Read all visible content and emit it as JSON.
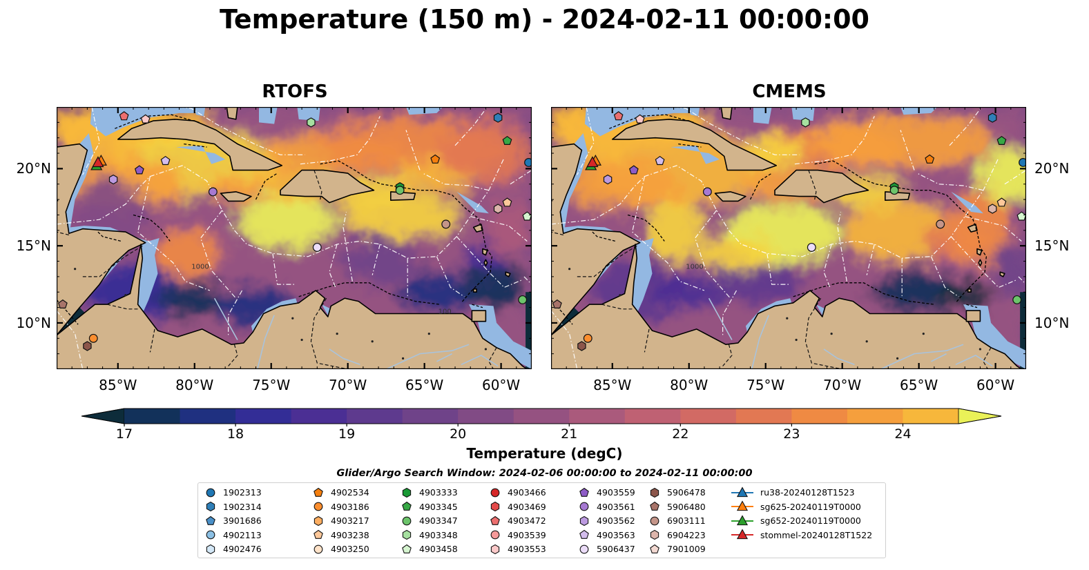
{
  "title": "Temperature (150 m) - 2024-02-11 00:00:00",
  "panels": [
    {
      "title": "RTOFS",
      "variant": 0
    },
    {
      "title": "CMEMS",
      "variant": 1
    }
  ],
  "map": {
    "lon_range": [
      -89,
      -58
    ],
    "lat_range": [
      7,
      24
    ],
    "lat_ticks": [
      {
        "value": 20,
        "label": "20°N"
      },
      {
        "value": 15,
        "label": "15°N"
      },
      {
        "value": 10,
        "label": "10°N"
      }
    ],
    "lon_ticks": [
      {
        "value": -85,
        "label": "85°W"
      },
      {
        "value": -80,
        "label": "80°W"
      },
      {
        "value": -75,
        "label": "75°W"
      },
      {
        "value": -70,
        "label": "70°W"
      },
      {
        "value": -65,
        "label": "65°W"
      },
      {
        "value": -60,
        "label": "60°W"
      }
    ],
    "contour_labels": [
      "1000",
      "100"
    ],
    "colors": {
      "land": "#d2b48c",
      "shelf": "#93b8e2",
      "coast": "#000000",
      "eez": "#ffffff"
    }
  },
  "colorbar": {
    "label": "Temperature (degC)",
    "range": [
      17,
      24.5
    ],
    "step": 0.5,
    "ticks": [
      {
        "value": 17,
        "label": "17"
      },
      {
        "value": 18,
        "label": "18"
      },
      {
        "value": 19,
        "label": "19"
      },
      {
        "value": 20,
        "label": "20"
      },
      {
        "value": 21,
        "label": "21"
      },
      {
        "value": 22,
        "label": "22"
      },
      {
        "value": 23,
        "label": "23"
      },
      {
        "value": 24,
        "label": "24"
      }
    ],
    "colors": [
      "#0d2c3a",
      "#12315a",
      "#1f3080",
      "#332d96",
      "#4b2f94",
      "#5e3a8e",
      "#6f4389",
      "#814b85",
      "#955281",
      "#aa5a7c",
      "#bf6173",
      "#d26a64",
      "#e27853",
      "#ef8a43",
      "#f59f3d",
      "#f7b73b",
      "#f5d23f",
      "#eaf158"
    ]
  },
  "legend": {
    "title": "Glider/Argo Search Window: 2024-02-06 00:00:00 to 2024-02-11 00:00:00",
    "columns": [
      [
        {
          "label": "1902313",
          "marker": "circle",
          "color": "#1f77b4"
        },
        {
          "label": "1902314",
          "marker": "hexagon",
          "color": "#2f7fb8"
        },
        {
          "label": "3901686",
          "marker": "pentagon",
          "color": "#4a90c8"
        },
        {
          "label": "4902113",
          "marker": "circle",
          "color": "#8cc0e4"
        },
        {
          "label": "4902476",
          "marker": "hexagon",
          "color": "#d4e8f7"
        }
      ],
      [
        {
          "label": "4902534",
          "marker": "pentagon",
          "color": "#f57f0e"
        },
        {
          "label": "4903186",
          "marker": "circle",
          "color": "#fb8e2f"
        },
        {
          "label": "4903217",
          "marker": "hexagon",
          "color": "#fdae61"
        },
        {
          "label": "4903238",
          "marker": "pentagon",
          "color": "#fdc89a"
        },
        {
          "label": "4903250",
          "marker": "circle",
          "color": "#ffe3c9"
        }
      ],
      [
        {
          "label": "4903333",
          "marker": "hexagon",
          "color": "#1a9a36"
        },
        {
          "label": "4903345",
          "marker": "pentagon",
          "color": "#37a845"
        },
        {
          "label": "4903347",
          "marker": "circle",
          "color": "#6cc46b"
        },
        {
          "label": "4903348",
          "marker": "hexagon",
          "color": "#a6e0a0"
        },
        {
          "label": "4903458",
          "marker": "pentagon",
          "color": "#d6f5d0"
        }
      ],
      [
        {
          "label": "4903466",
          "marker": "circle",
          "color": "#d62728"
        },
        {
          "label": "4903469",
          "marker": "hexagon",
          "color": "#e34a4a"
        },
        {
          "label": "4903472",
          "marker": "pentagon",
          "color": "#ec6f6f"
        },
        {
          "label": "4903539",
          "marker": "circle",
          "color": "#f59a9a"
        },
        {
          "label": "4903553",
          "marker": "hexagon",
          "color": "#fcc9c9"
        }
      ],
      [
        {
          "label": "4903559",
          "marker": "pentagon",
          "color": "#8e5cc7"
        },
        {
          "label": "4903561",
          "marker": "circle",
          "color": "#a679d2"
        },
        {
          "label": "4903562",
          "marker": "hexagon",
          "color": "#bc9ae0"
        },
        {
          "label": "4903563",
          "marker": "pentagon",
          "color": "#d3bdec"
        },
        {
          "label": "5906437",
          "marker": "circle",
          "color": "#ebdcf8"
        }
      ],
      [
        {
          "label": "5906478",
          "marker": "hexagon",
          "color": "#8c564b"
        },
        {
          "label": "5906480",
          "marker": "pentagon",
          "color": "#a8746a"
        },
        {
          "label": "6903111",
          "marker": "circle",
          "color": "#c49589"
        },
        {
          "label": "6904223",
          "marker": "hexagon",
          "color": "#dcb5ab"
        },
        {
          "label": "7901009",
          "marker": "pentagon",
          "color": "#f3d9d2"
        }
      ],
      [
        {
          "label": "ru38-20240128T1523",
          "marker": "triangle",
          "color": "#1f77b4"
        },
        {
          "label": "sg625-20240119T0000",
          "marker": "triangle",
          "color": "#ff7f0e"
        },
        {
          "label": "sg652-20240119T0000",
          "marker": "triangle",
          "color": "#2ca02c"
        },
        {
          "label": "stommel-20240128T1522",
          "marker": "triangle",
          "color": "#d62728"
        }
      ]
    ]
  },
  "observations": [
    {
      "lon": -58.2,
      "lat": 20.4,
      "marker": "circle",
      "color": "#1f77b4"
    },
    {
      "lon": -60.2,
      "lat": 23.3,
      "marker": "hexagon",
      "color": "#2f7fb8"
    },
    {
      "lon": -84.6,
      "lat": 23.4,
      "marker": "pentagon",
      "color": "#ec6f6f"
    },
    {
      "lon": -83.2,
      "lat": 23.2,
      "marker": "pentagon",
      "color": "#fcc9c9"
    },
    {
      "lon": -72.4,
      "lat": 23.0,
      "marker": "hexagon",
      "color": "#a6e0a0"
    },
    {
      "lon": -59.6,
      "lat": 21.8,
      "marker": "pentagon",
      "color": "#37a845"
    },
    {
      "lon": -64.3,
      "lat": 20.6,
      "marker": "pentagon",
      "color": "#f57f0e"
    },
    {
      "lon": -81.9,
      "lat": 20.5,
      "marker": "pentagon",
      "color": "#d3bdec"
    },
    {
      "lon": -83.6,
      "lat": 19.9,
      "marker": "pentagon",
      "color": "#8e5cc7"
    },
    {
      "lon": -85.3,
      "lat": 19.3,
      "marker": "hexagon",
      "color": "#bc9ae0"
    },
    {
      "lon": -78.8,
      "lat": 18.5,
      "marker": "circle",
      "color": "#a679d2"
    },
    {
      "lon": -66.6,
      "lat": 18.8,
      "marker": "hexagon",
      "color": "#1a9a36"
    },
    {
      "lon": -66.6,
      "lat": 18.6,
      "marker": "circle",
      "color": "#6cc46b"
    },
    {
      "lon": -59.6,
      "lat": 17.8,
      "marker": "pentagon",
      "color": "#fdc89a"
    },
    {
      "lon": -60.2,
      "lat": 17.4,
      "marker": "hexagon",
      "color": "#dcb5ab"
    },
    {
      "lon": -58.3,
      "lat": 16.9,
      "marker": "pentagon",
      "color": "#d6f5d0"
    },
    {
      "lon": -63.6,
      "lat": 16.4,
      "marker": "circle",
      "color": "#c49589"
    },
    {
      "lon": -72.0,
      "lat": 14.9,
      "marker": "circle",
      "color": "#ebdcf8"
    },
    {
      "lon": -58.6,
      "lat": 11.5,
      "marker": "circle",
      "color": "#6cc46b"
    },
    {
      "lon": -88.6,
      "lat": 11.2,
      "marker": "pentagon",
      "color": "#a8746a"
    },
    {
      "lon": -86.6,
      "lat": 9.0,
      "marker": "circle",
      "color": "#fb8e2f"
    },
    {
      "lon": -87.0,
      "lat": 8.5,
      "marker": "hexagon",
      "color": "#8c564b"
    },
    {
      "lon": -86.4,
      "lat": 20.2,
      "marker": "triangle",
      "color": "#2ca02c"
    },
    {
      "lon": -86.1,
      "lat": 20.5,
      "marker": "triangle",
      "color": "#ff7f0e"
    },
    {
      "lon": -86.3,
      "lat": 20.4,
      "marker": "triangle",
      "color": "#d62728"
    }
  ]
}
